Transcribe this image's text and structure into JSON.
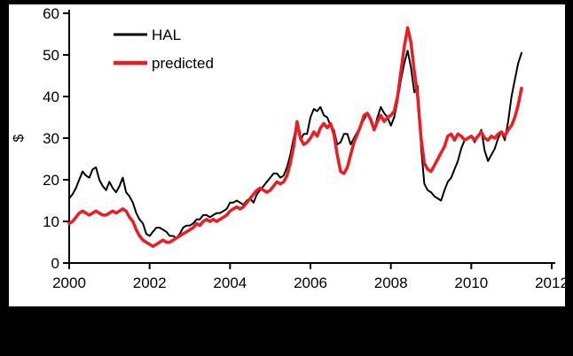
{
  "canvas": {
    "background": "#000000",
    "panel_background": "#ffffff"
  },
  "chart_data": {
    "type": "line",
    "title": "",
    "xlabel": "",
    "ylabel": "$",
    "xlim": [
      2000,
      2012
    ],
    "ylim": [
      0,
      60
    ],
    "x_ticks": [
      2000,
      2002,
      2004,
      2006,
      2008,
      2010,
      2012
    ],
    "y_ticks": [
      0,
      10,
      20,
      30,
      40,
      50,
      60
    ],
    "grid": false,
    "legend_position": "top-left",
    "x_start": 2000,
    "x_step_years": 0.0833333,
    "series": [
      {
        "name": "HAL",
        "color": "#000000",
        "width": 2,
        "values": [
          15.5,
          16.5,
          18,
          20,
          22,
          21,
          20.5,
          22.5,
          23,
          20,
          18.5,
          17.5,
          19.5,
          18,
          17,
          18.5,
          20.5,
          17,
          16,
          14.5,
          12,
          10.5,
          9.5,
          7,
          6.5,
          7.5,
          8.5,
          8.5,
          8,
          7.5,
          6.5,
          6.5,
          6,
          7,
          8.5,
          9,
          9,
          9.5,
          10.5,
          10.5,
          11.5,
          11.5,
          11,
          11.5,
          12,
          12,
          12.5,
          13,
          14.5,
          14.5,
          15,
          14.5,
          14,
          15,
          15.5,
          14.5,
          16.5,
          17.5,
          18.5,
          19.5,
          20.5,
          21.5,
          21.5,
          20.5,
          21,
          23,
          26,
          30,
          33.5,
          29.5,
          31,
          31,
          35,
          37,
          36.5,
          37.5,
          35.5,
          35,
          33,
          32,
          28.5,
          29,
          31,
          31,
          28.5,
          30,
          31.5,
          33,
          34.5,
          36,
          34,
          32,
          35,
          37.5,
          36,
          35,
          33,
          35,
          39,
          44,
          48,
          51,
          47,
          41,
          42.5,
          28,
          19,
          17.5,
          17,
          16,
          15.5,
          15,
          17.5,
          19.5,
          20.5,
          22.5,
          24.5,
          27.5,
          29.5,
          30,
          30.5,
          29,
          30.5,
          32,
          27,
          24.5,
          26,
          27.5,
          30,
          31.5,
          29.5,
          34,
          40,
          44,
          48,
          50.5
        ]
      },
      {
        "name": "predicted",
        "color": "#ed1c24",
        "width": 3.5,
        "values": [
          9.5,
          10,
          11,
          12,
          12.5,
          12,
          11.5,
          12,
          12.5,
          12,
          11.5,
          11.5,
          12,
          12.5,
          12,
          12.5,
          13,
          12.5,
          11,
          10,
          8,
          6.5,
          5.5,
          5,
          4.5,
          4,
          4.5,
          5,
          5.5,
          5,
          5,
          5.5,
          6,
          6.5,
          7,
          7.5,
          8,
          8.5,
          9.5,
          9,
          10,
          10.5,
          10,
          10.5,
          10,
          10.5,
          11,
          11.5,
          12.5,
          13,
          13.5,
          13,
          13.5,
          14.5,
          15.5,
          16.5,
          17.5,
          18,
          17.5,
          17,
          17.5,
          18.5,
          19.5,
          19,
          19.5,
          21,
          24,
          28,
          34,
          30,
          28.5,
          29,
          30,
          31.5,
          30.5,
          32.5,
          33.5,
          32.5,
          33.5,
          31,
          26,
          22,
          21.5,
          23,
          26,
          29,
          31,
          33,
          35.5,
          36,
          34.5,
          32,
          34,
          35.5,
          34,
          35,
          35.5,
          36.5,
          40,
          46,
          52,
          56.5,
          53,
          46,
          40,
          30,
          24,
          22.5,
          22,
          23.5,
          25,
          26.5,
          28,
          30.5,
          31,
          29.5,
          31,
          30.5,
          29.5,
          30,
          30.5,
          29.5,
          30.5,
          31.5,
          30,
          29.5,
          30.5,
          30,
          31,
          31.5,
          30.5,
          32,
          33,
          35,
          38,
          42
        ]
      }
    ]
  }
}
